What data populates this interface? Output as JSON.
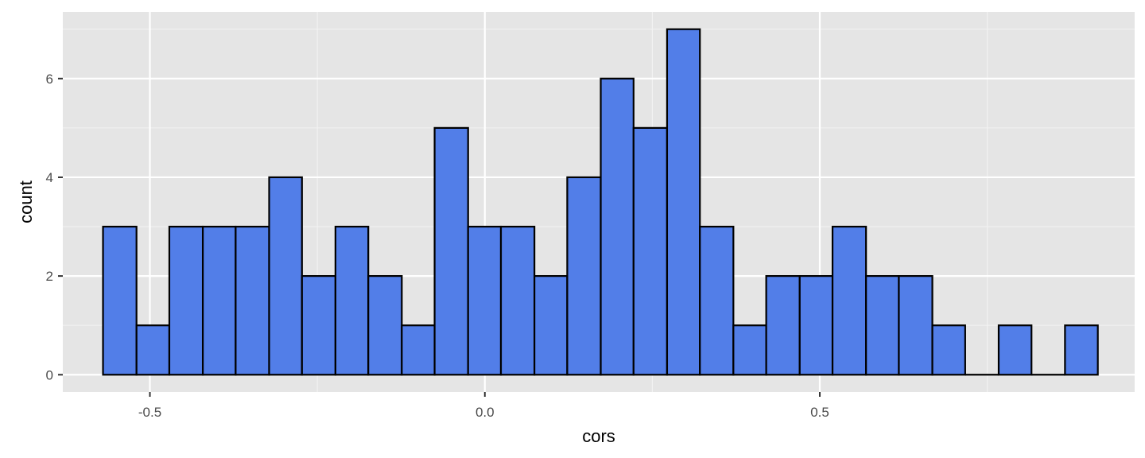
{
  "chart_data": {
    "type": "bar",
    "xlabel": "cors",
    "ylabel": "count",
    "xlim": [
      -0.63,
      0.97
    ],
    "ylim": [
      -0.35,
      7.35
    ],
    "x_ticks": [
      -0.5,
      0.0,
      0.5
    ],
    "x_tick_labels": [
      "-0.5",
      "0.0",
      "0.5"
    ],
    "y_ticks": [
      0,
      2,
      4,
      6
    ],
    "y_tick_labels": [
      "0",
      "2",
      "4",
      "6"
    ],
    "grid": true,
    "bins": [
      {
        "x0": -0.57,
        "x1": -0.52,
        "count": 3
      },
      {
        "x0": -0.52,
        "x1": -0.471,
        "count": 1
      },
      {
        "x0": -0.471,
        "x1": -0.421,
        "count": 3
      },
      {
        "x0": -0.421,
        "x1": -0.372,
        "count": 3
      },
      {
        "x0": -0.372,
        "x1": -0.322,
        "count": 3
      },
      {
        "x0": -0.322,
        "x1": -0.273,
        "count": 4
      },
      {
        "x0": -0.273,
        "x1": -0.223,
        "count": 2
      },
      {
        "x0": -0.223,
        "x1": -0.174,
        "count": 3
      },
      {
        "x0": -0.174,
        "x1": -0.124,
        "count": 2
      },
      {
        "x0": -0.124,
        "x1": -0.075,
        "count": 1
      },
      {
        "x0": -0.075,
        "x1": -0.025,
        "count": 5
      },
      {
        "x0": -0.025,
        "x1": 0.024,
        "count": 3
      },
      {
        "x0": 0.024,
        "x1": 0.074,
        "count": 3
      },
      {
        "x0": 0.074,
        "x1": 0.123,
        "count": 2
      },
      {
        "x0": 0.123,
        "x1": 0.173,
        "count": 4
      },
      {
        "x0": 0.173,
        "x1": 0.222,
        "count": 6
      },
      {
        "x0": 0.222,
        "x1": 0.272,
        "count": 5
      },
      {
        "x0": 0.272,
        "x1": 0.321,
        "count": 7
      },
      {
        "x0": 0.321,
        "x1": 0.371,
        "count": 3
      },
      {
        "x0": 0.371,
        "x1": 0.42,
        "count": 1
      },
      {
        "x0": 0.42,
        "x1": 0.47,
        "count": 2
      },
      {
        "x0": 0.47,
        "x1": 0.519,
        "count": 2
      },
      {
        "x0": 0.519,
        "x1": 0.569,
        "count": 3
      },
      {
        "x0": 0.569,
        "x1": 0.618,
        "count": 2
      },
      {
        "x0": 0.618,
        "x1": 0.668,
        "count": 2
      },
      {
        "x0": 0.668,
        "x1": 0.717,
        "count": 1
      },
      {
        "x0": 0.717,
        "x1": 0.767,
        "count": 0
      },
      {
        "x0": 0.767,
        "x1": 0.816,
        "count": 1
      },
      {
        "x0": 0.816,
        "x1": 0.866,
        "count": 0
      },
      {
        "x0": 0.866,
        "x1": 0.915,
        "count": 1
      }
    ],
    "colors": {
      "bar_fill": "#527ee8",
      "bar_stroke": "#000000",
      "panel_background": "#e5e5e5",
      "grid_major": "#ffffff",
      "grid_minor": "#f2f2f2",
      "tick_label": "#4d4d4d",
      "axis_title": "#000000"
    }
  }
}
